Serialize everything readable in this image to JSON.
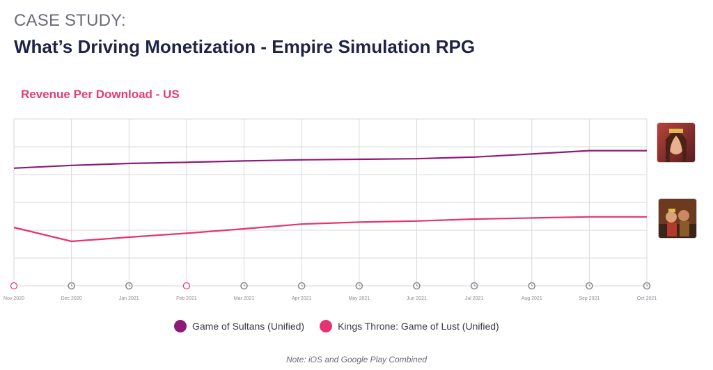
{
  "header": {
    "kicker": "CASE STUDY:",
    "title": "What’s Driving Monetization - Empire Simulation RPG"
  },
  "note": "Note: iOS and Google Play Combined",
  "colors": {
    "game_of_sultans": "#8e1a78",
    "kings_throne": "#e5336f",
    "grid": "#d9d9de",
    "tick": "#8a8a93"
  },
  "chart_data": {
    "type": "line",
    "title": "Revenue Per Download - US",
    "xlabel": "",
    "ylabel": "",
    "categories": [
      "Nov 2020",
      "Dec 2020",
      "Jan 2021",
      "Feb 2021",
      "Mar 2021",
      "Apr 2021",
      "May 2021",
      "Jun 2021",
      "Jul 2021",
      "Aug 2021",
      "Sep 2021",
      "Oct 2021"
    ],
    "ylim": [
      0,
      6
    ],
    "grid": true,
    "legend_position": "bottom",
    "series": [
      {
        "name": "Game of Sultans (Unified)",
        "color": "#8e1a78",
        "values": [
          4.23,
          4.33,
          4.4,
          4.44,
          4.49,
          4.53,
          4.55,
          4.57,
          4.63,
          4.74,
          4.86,
          4.86
        ]
      },
      {
        "name": "Kings Throne: Game of Lust (Unified)",
        "color": "#e5336f",
        "values": [
          2.1,
          1.6,
          1.75,
          1.89,
          2.05,
          2.22,
          2.29,
          2.33,
          2.4,
          2.44,
          2.48,
          2.48
        ]
      }
    ],
    "tick_icons": [
      "open-circle-pink",
      "clock",
      "clock",
      "open-circle-pink",
      "clock",
      "clock",
      "clock",
      "clock",
      "clock",
      "clock",
      "clock",
      "clock"
    ]
  }
}
